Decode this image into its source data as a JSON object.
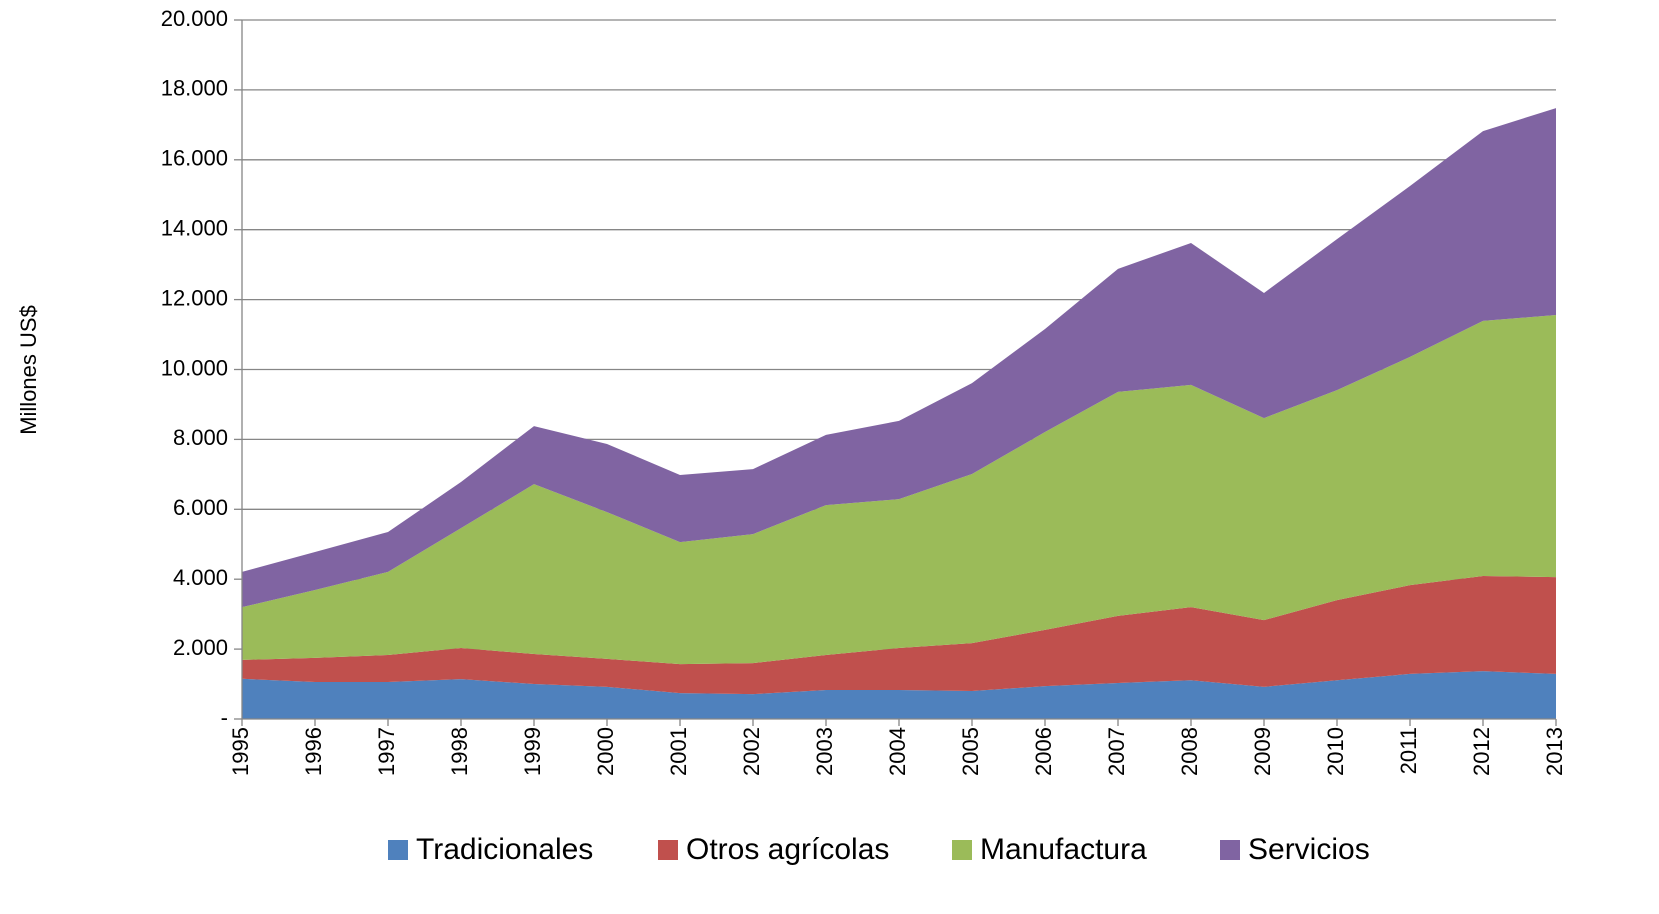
{
  "chart_data": {
    "type": "stacked_area",
    "y_label": "Millones US$",
    "categories": [
      "1995",
      "1996",
      "1997",
      "1998",
      "1999",
      "2000",
      "2001",
      "2002",
      "2003",
      "2004",
      "2005",
      "2006",
      "2007",
      "2008",
      "2009",
      "2010",
      "2011",
      "2012",
      "2013"
    ],
    "series": [
      {
        "name": "Tradicionales",
        "color": "#4f81bd",
        "values": [
          1150,
          1060,
          1060,
          1140,
          1000,
          920,
          740,
          710,
          830,
          830,
          800,
          940,
          1030,
          1110,
          920,
          1110,
          1290,
          1370,
          1290
        ]
      },
      {
        "name": "Otros agrícolas",
        "color": "#c0504d",
        "values": [
          540,
          690,
          770,
          890,
          860,
          800,
          830,
          890,
          1000,
          1200,
          1370,
          1610,
          1920,
          2090,
          1910,
          2290,
          2540,
          2720,
          2770
        ]
      },
      {
        "name": "Manufactura",
        "color": "#9bbb59",
        "values": [
          1510,
          1940,
          2380,
          3430,
          4860,
          4200,
          3490,
          3690,
          4290,
          4260,
          4840,
          5660,
          6410,
          6360,
          5780,
          6010,
          6530,
          7300,
          7500
        ]
      },
      {
        "name": "Servicios",
        "color": "#8064a2",
        "values": [
          1010,
          1090,
          1140,
          1320,
          1660,
          1950,
          1920,
          1860,
          2010,
          2240,
          2600,
          2950,
          3520,
          4060,
          3580,
          4320,
          4890,
          5430,
          5920
        ]
      }
    ],
    "ylim": [
      0,
      20000
    ],
    "yticks": [
      {
        "value": 0,
        "label": "-"
      },
      {
        "value": 2000,
        "label": "2.000"
      },
      {
        "value": 4000,
        "label": "4.000"
      },
      {
        "value": 6000,
        "label": "6.000"
      },
      {
        "value": 8000,
        "label": "8.000"
      },
      {
        "value": 10000,
        "label": "10.000"
      },
      {
        "value": 12000,
        "label": "12.000"
      },
      {
        "value": 14000,
        "label": "14.000"
      },
      {
        "value": 16000,
        "label": "16.000"
      },
      {
        "value": 18000,
        "label": "18.000"
      },
      {
        "value": 20000,
        "label": "20.000"
      }
    ],
    "grid": true,
    "legend": "bottom"
  }
}
